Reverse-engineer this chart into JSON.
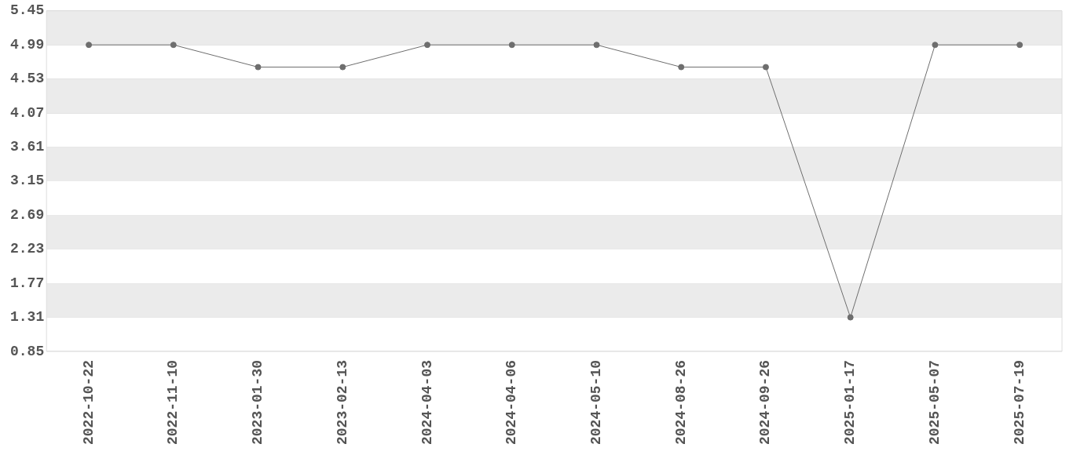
{
  "chart_data": {
    "type": "line",
    "categories": [
      "2022-10-22",
      "2022-11-10",
      "2023-01-30",
      "2023-02-13",
      "2024-04-03",
      "2024-04-06",
      "2024-05-10",
      "2024-08-26",
      "2024-09-26",
      "2025-01-17",
      "2025-05-07",
      "2025-07-19"
    ],
    "series": [
      {
        "color": "#6e6e6e",
        "values": [
          4.99,
          4.99,
          4.69,
          4.69,
          4.99,
          4.99,
          4.99,
          4.69,
          4.69,
          1.31,
          4.99,
          4.99
        ]
      }
    ],
    "ylim": [
      0.85,
      5.45
    ],
    "yticks": [
      0.85,
      1.31,
      1.77,
      2.23,
      2.69,
      3.15,
      3.61,
      4.07,
      4.53,
      4.99,
      5.45
    ],
    "grid": true,
    "legend": false,
    "marker": "circle",
    "line_style": "solid"
  }
}
